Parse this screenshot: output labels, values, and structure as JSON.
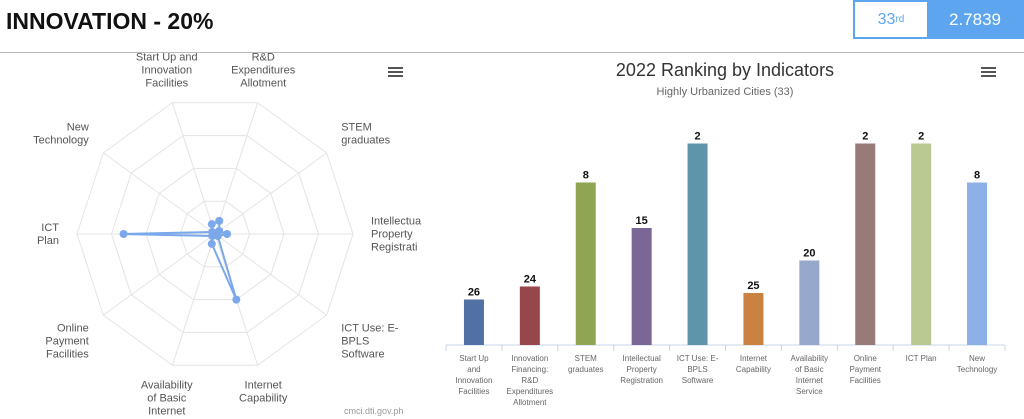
{
  "header": {
    "title": "INNOVATION - 20%",
    "rank_number": "33",
    "rank_suffix": "rd",
    "score": "2.7839"
  },
  "radar": {
    "credit": "cmci.dti.gov.ph",
    "icon": "hamburger-menu-icon",
    "color": "#7aa8ea",
    "axes": [
      {
        "label": [
          "Start Up and",
          "Innovation",
          "Facilities"
        ],
        "value": 0.3
      },
      {
        "label": [
          "Innovation",
          "Financing:",
          "R&D",
          "Expenditures",
          "Allotment"
        ],
        "value": 0.4
      },
      {
        "label": [
          "STEM",
          "graduates"
        ],
        "value": 0.15
      },
      {
        "label": [
          "Intellectua",
          "Property",
          "Registrati"
        ],
        "value": 0.35
      },
      {
        "label": [
          "ICT Use: E-",
          "BPLS",
          "Software"
        ],
        "value": 0.1
      },
      {
        "label": [
          "Internet",
          "Capability"
        ],
        "value": 2.0
      },
      {
        "label": [
          "Availability",
          "of Basic",
          "Internet",
          "Service"
        ],
        "value": 0.3
      },
      {
        "label": [
          "Online",
          "Payment",
          "Facilities"
        ],
        "value": 0.1
      },
      {
        "label": [
          "ICT",
          "Plan"
        ],
        "value": 2.65
      },
      {
        "label": [
          "New",
          "Technology"
        ],
        "value": 0.1
      }
    ]
  },
  "chart_data": {
    "type": "bar",
    "title": "2022 Ranking by Indicators",
    "subtitle": "Highly Urbanized Cities (33)",
    "categories": [
      [
        "Start Up",
        "and",
        "Innovation",
        "Facilities"
      ],
      [
        "Innovation",
        "Financing:",
        "R&D",
        "Expenditures",
        "Allotment"
      ],
      [
        "STEM",
        "graduates"
      ],
      [
        "Intellectual",
        "Property",
        "Registration"
      ],
      [
        "ICT Use: E-",
        "BPLS",
        "Software"
      ],
      [
        "Internet",
        "Capability"
      ],
      [
        "Availability",
        "of Basic",
        "Internet",
        "Service"
      ],
      [
        "Online",
        "Payment",
        "Facilities"
      ],
      [
        "ICT Plan"
      ],
      [
        "New",
        "Technology"
      ]
    ],
    "values": [
      26,
      24,
      8,
      15,
      2,
      25,
      20,
      2,
      2,
      8
    ],
    "colors": [
      "#5170a3",
      "#97464a",
      "#90a553",
      "#7a6796",
      "#5f95ab",
      "#c98241",
      "#96a8cb",
      "#987a78",
      "#bac891",
      "#8db0e6"
    ],
    "total": 33
  }
}
